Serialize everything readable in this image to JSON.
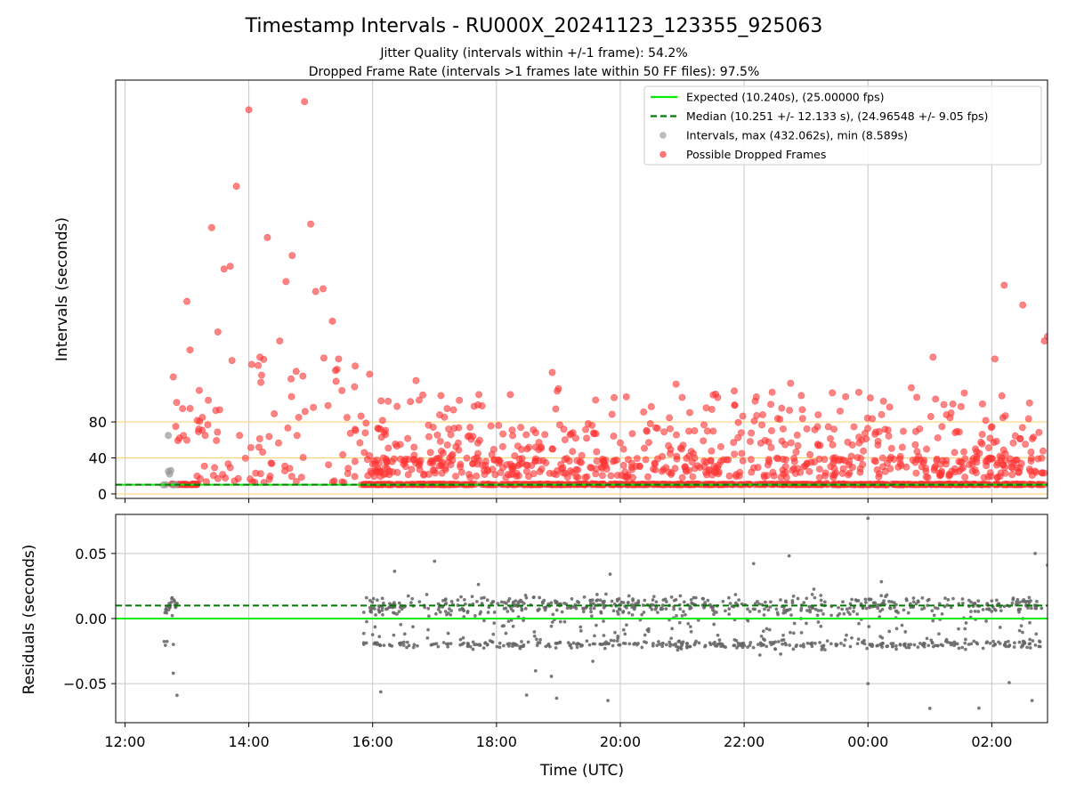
{
  "chart_data": {
    "type": "scatter",
    "title": "Timestamp Intervals - RU000X_20241123_123355_925063",
    "subtitle_lines": [
      "Jitter Quality (intervals within +/-1 frame): 54.2%",
      "Dropped Frame Rate (intervals >1 frames late within 50 FF files): 97.5%"
    ],
    "xlabel": "Time (UTC)",
    "x_ticks": [
      "12:00",
      "14:00",
      "16:00",
      "18:00",
      "20:00",
      "22:00",
      "00:00",
      "02:00"
    ],
    "x_range_hours": [
      11.85,
      26.9
    ],
    "grid": true,
    "legend_placement": "top-right",
    "panels": [
      {
        "id": "intervals",
        "ylabel": "Intervals (seconds)",
        "y_ticks": [
          0,
          40,
          80
        ],
        "ylim": [
          -5,
          460
        ],
        "reference_lines": [
          0,
          40,
          80
        ],
        "expected": 10.24,
        "median": 10.251
      },
      {
        "id": "residuals",
        "ylabel": "Residuals (seconds)",
        "y_ticks": [
          -0.05,
          0.0,
          0.05
        ],
        "y_tick_labels": [
          "−0.05",
          "0.00",
          "0.05"
        ],
        "ylim": [
          -0.08,
          0.08
        ],
        "expected": 0.0,
        "median": 0.01
      }
    ],
    "legend": [
      {
        "label": "Expected (10.240s), (25.00000 fps)",
        "kind": "solid-line",
        "color": "#00ee00"
      },
      {
        "label": "Median (10.251 +/- 12.133 s), (24.96548 +/- 9.05 fps)",
        "kind": "dashed-line",
        "color": "#007a00"
      },
      {
        "label": "Intervals, max (432.062s), min (8.589s)",
        "kind": "dot",
        "color": "#999999"
      },
      {
        "label": "Possible Dropped Frames",
        "kind": "dot",
        "color": "#ff3333"
      }
    ],
    "series": [
      {
        "name": "Intervals, max (432.062s), min (8.589s)",
        "color": "#999999",
        "points": [
          [
            12.62,
            10.0
          ],
          [
            12.66,
            10.2
          ],
          [
            12.7,
            25.0
          ],
          [
            12.72,
            22.0
          ],
          [
            12.74,
            26.0
          ],
          [
            12.7,
            65.0
          ],
          [
            12.78,
            10.1
          ],
          [
            12.82,
            10.3
          ]
        ]
      },
      {
        "name": "Possible Dropped Frames",
        "color": "#ff3333",
        "notable_points": [
          [
            12.78,
            130
          ],
          [
            12.82,
            75
          ],
          [
            12.88,
            62
          ],
          [
            13.0,
            214
          ],
          [
            13.05,
            160
          ],
          [
            13.2,
            115
          ],
          [
            13.25,
            85
          ],
          [
            13.4,
            296
          ],
          [
            13.5,
            180
          ],
          [
            13.6,
            250
          ],
          [
            13.7,
            253
          ],
          [
            13.8,
            342
          ],
          [
            13.85,
            65
          ],
          [
            14.0,
            427
          ],
          [
            14.18,
            152
          ],
          [
            14.3,
            285
          ],
          [
            14.5,
            170
          ],
          [
            14.6,
            236
          ],
          [
            14.7,
            265
          ],
          [
            14.9,
            436
          ],
          [
            15.0,
            300
          ],
          [
            15.08,
            225
          ],
          [
            15.2,
            228
          ],
          [
            15.35,
            192
          ],
          [
            15.45,
            150
          ],
          [
            15.95,
            133
          ],
          [
            16.25,
            103
          ],
          [
            16.7,
            126
          ],
          [
            17.4,
            104
          ],
          [
            18.9,
            135
          ],
          [
            19.0,
            117
          ],
          [
            19.9,
            107
          ],
          [
            20.5,
            97
          ],
          [
            20.9,
            122
          ],
          [
            21.5,
            110
          ],
          [
            22.3,
            88
          ],
          [
            22.75,
            123
          ],
          [
            23.55,
            92
          ],
          [
            24.25,
            103
          ],
          [
            24.7,
            118
          ],
          [
            25.05,
            152
          ],
          [
            25.85,
            100
          ],
          [
            26.05,
            150
          ],
          [
            26.2,
            232
          ],
          [
            26.5,
            210
          ],
          [
            26.85,
            170
          ],
          [
            26.9,
            175
          ]
        ]
      }
    ]
  }
}
